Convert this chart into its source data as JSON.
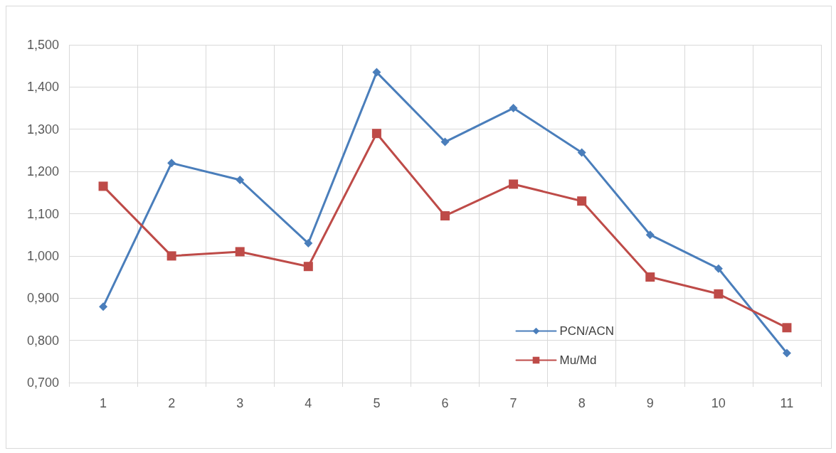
{
  "chart_data": {
    "type": "line",
    "categories": [
      "1",
      "2",
      "3",
      "4",
      "5",
      "6",
      "7",
      "8",
      "9",
      "10",
      "11"
    ],
    "series": [
      {
        "name": "PCN/ACN",
        "color": "#4a7ebb",
        "marker": "diamond",
        "values": [
          0.88,
          1.22,
          1.18,
          1.03,
          1.435,
          1.27,
          1.35,
          1.245,
          1.05,
          0.97,
          0.77
        ]
      },
      {
        "name": "Mu/Md",
        "color": "#be4b48",
        "marker": "square",
        "values": [
          1.165,
          1.0,
          1.01,
          0.975,
          1.29,
          1.095,
          1.17,
          1.13,
          0.95,
          0.91,
          0.83
        ]
      }
    ],
    "ylim": [
      0.7,
      1.5
    ],
    "yticks": [
      {
        "value": 0.7,
        "label": "0,700"
      },
      {
        "value": 0.8,
        "label": "0,800"
      },
      {
        "value": 0.9,
        "label": "0,900"
      },
      {
        "value": 1.0,
        "label": "1,000"
      },
      {
        "value": 1.1,
        "label": "1,100"
      },
      {
        "value": 1.2,
        "label": "1,200"
      },
      {
        "value": 1.3,
        "label": "1,300"
      },
      {
        "value": 1.4,
        "label": "1,400"
      },
      {
        "value": 1.5,
        "label": "1,500"
      }
    ],
    "grid": true,
    "legend": "bottom right",
    "line_style": "solid"
  }
}
